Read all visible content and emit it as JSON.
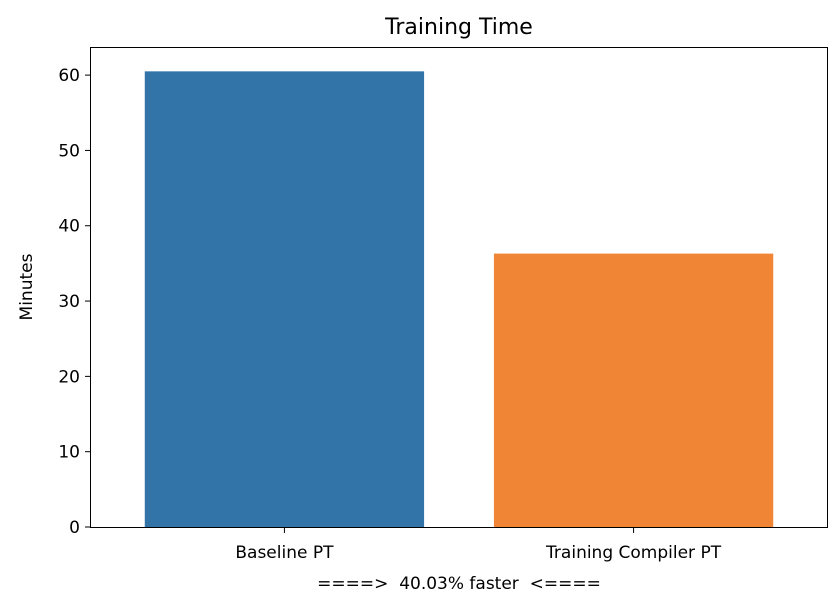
{
  "chart_data": {
    "type": "bar",
    "title": "Training Time",
    "xlabel": "====>  40.03% faster  <====",
    "ylabel": "Minutes",
    "categories": [
      "Baseline PT",
      "Training Compiler PT"
    ],
    "values": [
      60.5,
      36.3
    ],
    "colors": [
      "#3274a8",
      "#ef8535"
    ],
    "ylim": [
      0,
      63.6
    ],
    "yticks": [
      0,
      10,
      20,
      30,
      40,
      50,
      60
    ],
    "grid": false,
    "legend": "none"
  }
}
